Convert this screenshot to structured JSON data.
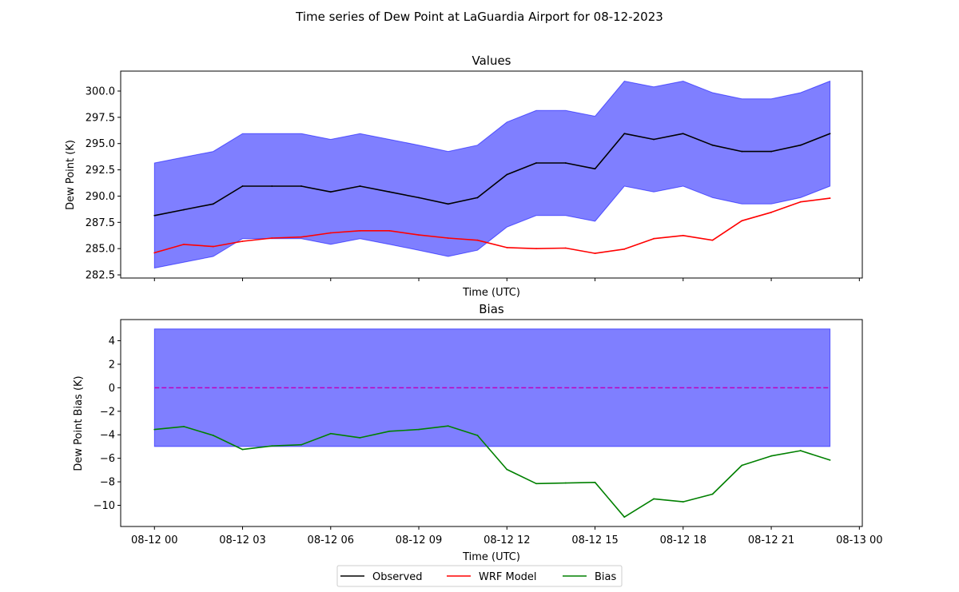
{
  "figure": {
    "suptitle": "Time series of Dew Point at LaGuardia Airport for 08-12-2023"
  },
  "legend": {
    "placement": "bottom-center",
    "entries": [
      {
        "label": "Observed",
        "color": "#000000"
      },
      {
        "label": "WRF Model",
        "color": "#ff0000"
      },
      {
        "label": "Bias",
        "color": "#008000"
      }
    ]
  },
  "colors": {
    "band": "#0000ff",
    "band_alpha": 0.5,
    "observed": "#000000",
    "model": "#ff0000",
    "bias": "#008000",
    "zero_line": "#bf00bf"
  },
  "chart_data": [
    {
      "type": "line",
      "title": "Values",
      "xlabel": "Time (UTC)",
      "ylabel": "Dew Point (K)",
      "x_hours": [
        0,
        1,
        2,
        3,
        4,
        5,
        6,
        7,
        8,
        9,
        10,
        11,
        12,
        13,
        14,
        15,
        16,
        17,
        18,
        19,
        20,
        21,
        22,
        23
      ],
      "xlim_hours": [
        -1.15,
        24.1
      ],
      "ylim": [
        282.2,
        301.9
      ],
      "yticks": [
        282.5,
        285.0,
        287.5,
        290.0,
        292.5,
        295.0,
        297.5,
        300.0
      ],
      "ytick_labels": [
        "282.5",
        "285.0",
        "287.5",
        "290.0",
        "292.5",
        "295.0",
        "297.5",
        "300.0"
      ],
      "xticks_hours": [
        0,
        3,
        6,
        9,
        12,
        15,
        18,
        21,
        24
      ],
      "xtick_labels_hidden": true,
      "grid": false,
      "series": [
        {
          "name": "Observed",
          "values": [
            288.15,
            288.7,
            289.25,
            290.95,
            290.95,
            290.95,
            290.4,
            290.95,
            290.4,
            289.85,
            289.25,
            289.85,
            292.05,
            293.15,
            293.15,
            292.6,
            295.95,
            295.4,
            295.95,
            294.85,
            294.25,
            294.25,
            294.85,
            295.95
          ]
        },
        {
          "name": "WRF Model",
          "values": [
            284.6,
            285.4,
            285.2,
            285.7,
            286.0,
            286.1,
            286.5,
            286.7,
            286.7,
            286.3,
            286.0,
            285.8,
            285.1,
            285.0,
            285.05,
            284.55,
            284.95,
            285.95,
            286.25,
            285.8,
            287.65,
            288.45,
            289.45,
            289.8
          ]
        }
      ],
      "band": {
        "around": "Observed",
        "half_width": 5
      }
    },
    {
      "type": "line",
      "title": "Bias",
      "xlabel": "Time (UTC)",
      "ylabel": "Dew Point Bias (K)",
      "x_hours": [
        0,
        1,
        2,
        3,
        4,
        5,
        6,
        7,
        8,
        9,
        10,
        11,
        12,
        13,
        14,
        15,
        16,
        17,
        18,
        19,
        20,
        21,
        22,
        23
      ],
      "xlim_hours": [
        -1.15,
        24.1
      ],
      "ylim": [
        -11.8,
        5.8
      ],
      "yticks": [
        -10,
        -8,
        -6,
        -4,
        -2,
        0,
        2,
        4
      ],
      "ytick_labels": [
        "−10",
        "−8",
        "−6",
        "−4",
        "−2",
        "0",
        "2",
        "4"
      ],
      "xticks_hours": [
        0,
        3,
        6,
        9,
        12,
        15,
        18,
        21,
        24
      ],
      "xtick_labels": [
        "08-12 00",
        "08-12 03",
        "08-12 06",
        "08-12 09",
        "08-12 12",
        "08-12 15",
        "08-12 18",
        "08-12 21",
        "08-13 00"
      ],
      "grid": false,
      "series": [
        {
          "name": "Bias",
          "values": [
            -3.55,
            -3.3,
            -4.05,
            -5.25,
            -4.95,
            -4.85,
            -3.9,
            -4.25,
            -3.7,
            -3.55,
            -3.25,
            -4.05,
            -6.95,
            -8.15,
            -8.1,
            -8.05,
            -11.0,
            -9.45,
            -9.7,
            -9.05,
            -6.6,
            -5.8,
            -5.35,
            -6.15
          ]
        }
      ],
      "band": {
        "lower": -5,
        "upper": 5
      },
      "reference_line": {
        "y": 0,
        "style": "dashed"
      }
    }
  ]
}
